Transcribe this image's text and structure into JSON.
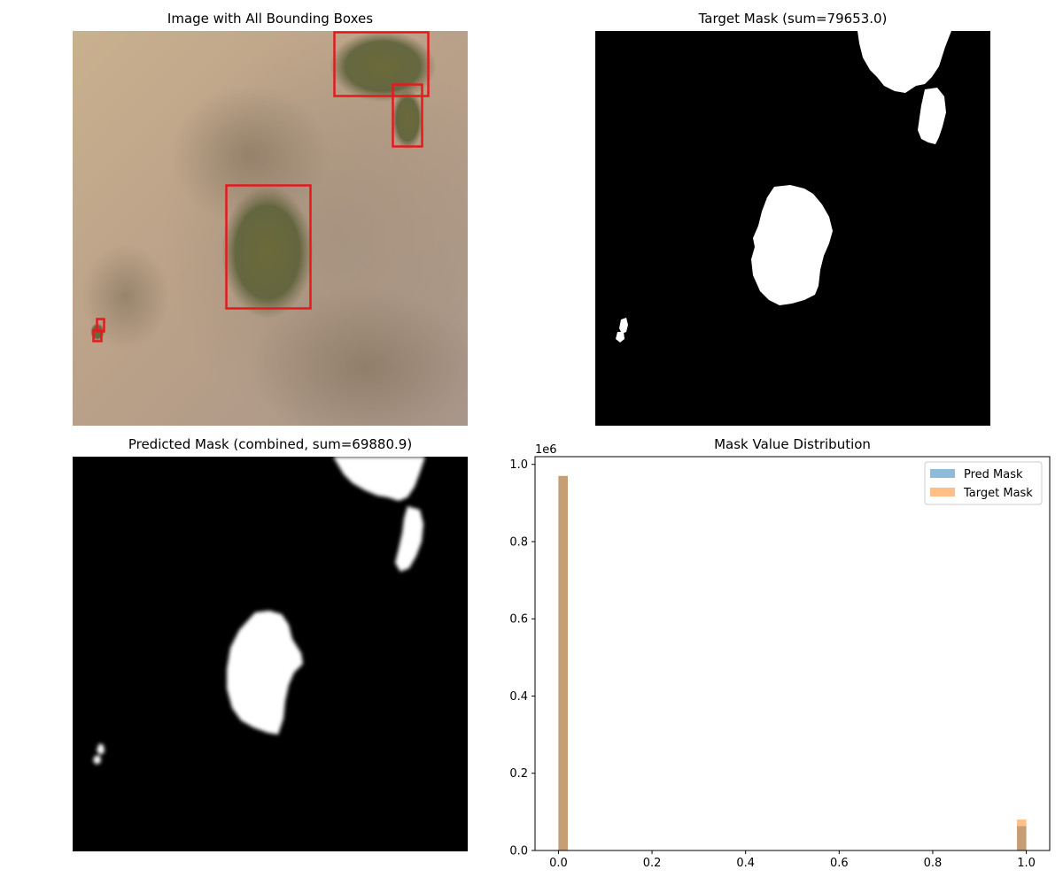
{
  "panels": {
    "image": {
      "title": "Image with All Bounding Boxes"
    },
    "target": {
      "title": "Target Mask (sum=79653.0)"
    },
    "predicted": {
      "title": "Predicted Mask (combined, sum=69880.9)"
    },
    "histogram": {
      "title": "Mask Value Distribution"
    }
  },
  "colors": {
    "bbox": "#e41a1c",
    "pred": "#1f77b4",
    "target": "#ff7f0e",
    "overlap": "#c89f77"
  },
  "chart_data": {
    "type": "bar",
    "title": "Mask Value Distribution",
    "xlabel": "",
    "ylabel": "",
    "y_offset_label": "1e6",
    "xlim": [
      -0.05,
      1.05
    ],
    "ylim": [
      0,
      1.02
    ],
    "xticks": [
      0.0,
      0.2,
      0.4,
      0.6,
      0.8,
      1.0
    ],
    "xtick_labels": [
      "0.0",
      "0.2",
      "0.4",
      "0.6",
      "0.8",
      "1.0"
    ],
    "yticks": [
      0.0,
      0.2,
      0.4,
      0.6,
      0.8,
      1.0
    ],
    "ytick_labels": [
      "0.0",
      "0.2",
      "0.4",
      "0.6",
      "0.8",
      "1.0"
    ],
    "bin_width": 0.02,
    "legend_position": "top-right",
    "series": [
      {
        "name": "Pred Mask",
        "bins": [
          0.0,
          0.98
        ],
        "values": [
          0.97,
          0.063
        ],
        "alpha": 0.5
      },
      {
        "name": "Target Mask",
        "bins": [
          0.0,
          0.98
        ],
        "values": [
          0.97,
          0.08
        ],
        "alpha": 0.5
      }
    ]
  }
}
